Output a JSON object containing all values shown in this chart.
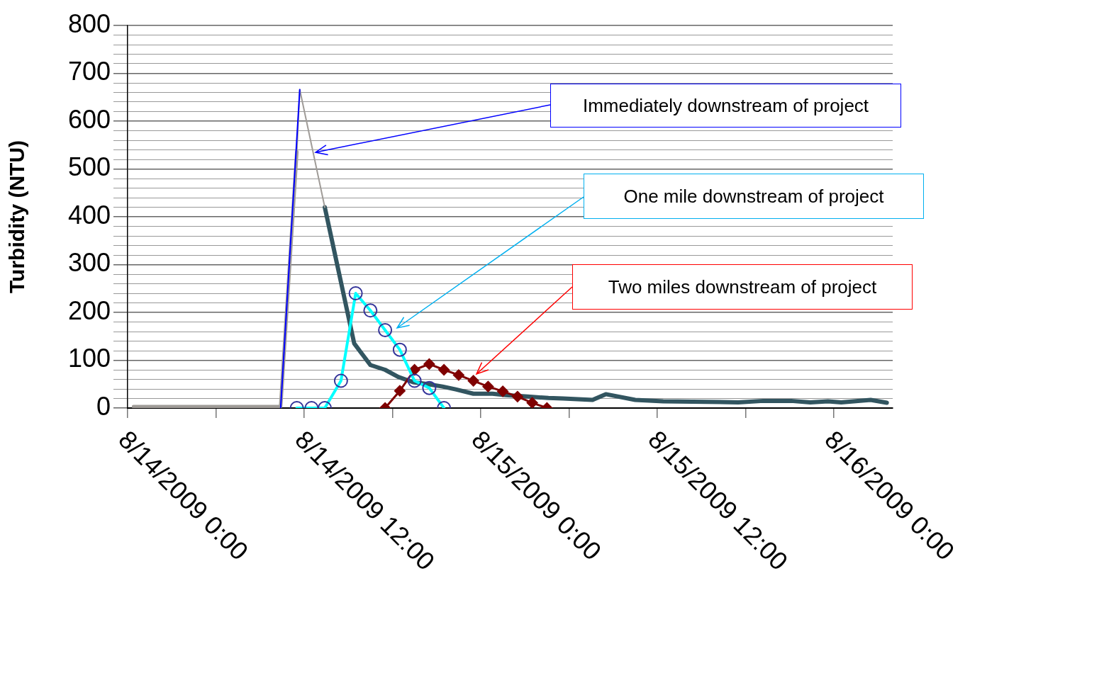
{
  "chart_data": {
    "type": "line",
    "ylabel": "Turbidity (NTU)",
    "xlim": [
      "2009-08-14T00:00",
      "2009-08-16T04:00"
    ],
    "xticks": [
      {
        "value": "2009-08-14T00:00",
        "label": "8/14/2009 0:00"
      },
      {
        "value": "2009-08-14T06:00",
        "label": null
      },
      {
        "value": "2009-08-14T12:00",
        "label": "8/14/2009 12:00"
      },
      {
        "value": "2009-08-14T18:00",
        "label": null
      },
      {
        "value": "2009-08-15T00:00",
        "label": "8/15/2009 0:00"
      },
      {
        "value": "2009-08-15T06:00",
        "label": null
      },
      {
        "value": "2009-08-15T12:00",
        "label": "8/15/2009 12:00"
      },
      {
        "value": "2009-08-15T18:00",
        "label": null
      },
      {
        "value": "2009-08-16T00:00",
        "label": "8/16/2009 0:00"
      }
    ],
    "ylim": [
      0,
      800
    ],
    "yticks": [
      0,
      {
        "value": 20,
        "label": null
      },
      {
        "value": 40,
        "label": null
      },
      {
        "value": 60,
        "label": null
      },
      {
        "value": 80,
        "label": null
      },
      100,
      {
        "value": 120,
        "label": null
      },
      {
        "value": 140,
        "label": null
      },
      {
        "value": 160,
        "label": null
      },
      {
        "value": 180,
        "label": null
      },
      200,
      {
        "value": 220,
        "label": null
      },
      {
        "value": 240,
        "label": null
      },
      {
        "value": 260,
        "label": null
      },
      {
        "value": 280,
        "label": null
      },
      300,
      {
        "value": 320,
        "label": null
      },
      {
        "value": 340,
        "label": null
      },
      {
        "value": 360,
        "label": null
      },
      {
        "value": 380,
        "label": null
      },
      400,
      {
        "value": 420,
        "label": null
      },
      {
        "value": 440,
        "label": null
      },
      {
        "value": 460,
        "label": null
      },
      {
        "value": 480,
        "label": null
      },
      500,
      {
        "value": 520,
        "label": null
      },
      {
        "value": 540,
        "label": null
      },
      {
        "value": 560,
        "label": null
      },
      {
        "value": 580,
        "label": null
      },
      600,
      {
        "value": 620,
        "label": null
      },
      {
        "value": 640,
        "label": null
      },
      {
        "value": 660,
        "label": null
      },
      {
        "value": 680,
        "label": null
      },
      700,
      {
        "value": 720,
        "label": null
      },
      {
        "value": 740,
        "label": null
      },
      {
        "value": 760,
        "label": null
      },
      {
        "value": 780,
        "label": null
      },
      800
    ],
    "grid": "y",
    "legend": false,
    "series": [
      {
        "color": "#a09c98",
        "marker": "none",
        "x": [
          "2009-08-14T00:24",
          "2009-08-14T10:24",
          "2009-08-14T11:30"
        ],
        "values": [
          3,
          3,
          536
        ]
      },
      {
        "color": "#a09c98",
        "marker": "none",
        "x": [
          "2009-08-14T11:30",
          "2009-08-14T11:42",
          "2009-08-14T13:24"
        ],
        "values": [
          536,
          666,
          420
        ]
      },
      {
        "color": "#0000ff",
        "marker": "none",
        "x": [
          "2009-08-14T10:24",
          "2009-08-14T11:42"
        ],
        "values": [
          0,
          666
        ]
      },
      {
        "color": "#325560",
        "marker": "none",
        "x": [
          "2009-08-14T13:24",
          "2009-08-14T15:24",
          "2009-08-14T16:30",
          "2009-08-14T17:30",
          "2009-08-14T18:24",
          "2009-08-14T19:24",
          "2009-08-14T20:24",
          "2009-08-14T21:24",
          "2009-08-14T22:18",
          "2009-08-14T23:30",
          "2009-08-15T00:48",
          "2009-08-15T01:42",
          "2009-08-15T03:12",
          "2009-08-15T04:36",
          "2009-08-15T05:36",
          "2009-08-15T07:36",
          "2009-08-15T08:30",
          "2009-08-15T10:30",
          "2009-08-15T12:24",
          "2009-08-15T17:30",
          "2009-08-15T19:12",
          "2009-08-15T21:06",
          "2009-08-15T22:24",
          "2009-08-15T23:36",
          "2009-08-16T00:30",
          "2009-08-16T02:30",
          "2009-08-16T03:36"
        ],
        "values": [
          420,
          135,
          90,
          80,
          65,
          54,
          50,
          45,
          39,
          30,
          30,
          27,
          24,
          21,
          20,
          17,
          29,
          17,
          14,
          12,
          15,
          15,
          12,
          14,
          12,
          17,
          11
        ]
      },
      {
        "color": "#00ffff",
        "marker": "circle",
        "x": [
          "2009-08-14T11:30",
          "2009-08-14T12:30",
          "2009-08-14T13:24",
          "2009-08-14T14:30",
          "2009-08-14T15:30",
          "2009-08-14T16:30",
          "2009-08-14T17:30",
          "2009-08-14T18:30",
          "2009-08-14T19:30",
          "2009-08-14T20:30",
          "2009-08-14T21:30"
        ],
        "values": [
          0,
          0,
          0,
          57,
          240,
          204,
          163,
          122,
          57,
          42,
          0
        ]
      },
      {
        "color": "#7f0000",
        "marker": "diamond",
        "x": [
          "2009-08-14T17:30",
          "2009-08-14T18:30",
          "2009-08-14T19:30",
          "2009-08-14T20:30",
          "2009-08-14T21:30",
          "2009-08-14T22:30",
          "2009-08-14T23:30",
          "2009-08-15T00:30",
          "2009-08-15T01:30",
          "2009-08-15T02:30",
          "2009-08-15T03:30",
          "2009-08-15T04:30"
        ],
        "values": [
          0,
          36,
          80,
          92,
          80,
          69,
          57,
          45,
          35,
          24,
          11,
          0
        ]
      }
    ],
    "annotations": [
      "Immediately downstream of project",
      "One mile downstream of project",
      "Two miles downstream of project"
    ]
  }
}
